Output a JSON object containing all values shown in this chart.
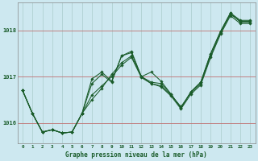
{
  "title": "Graphe pression niveau de la mer (hPa)",
  "background_color": "#cde8f0",
  "grid_color": "#aacccc",
  "line_color": "#1a5c2a",
  "xlim": [
    -0.5,
    23.5
  ],
  "ylim": [
    1015.55,
    1018.6
  ],
  "yticks": [
    1016,
    1017,
    1018
  ],
  "xticks": [
    0,
    1,
    2,
    3,
    4,
    5,
    6,
    7,
    8,
    9,
    10,
    11,
    12,
    13,
    14,
    15,
    16,
    17,
    18,
    19,
    20,
    21,
    22,
    23
  ],
  "series1": [
    1016.7,
    1016.2,
    1015.8,
    1015.85,
    1015.78,
    1015.8,
    1016.2,
    1016.5,
    1016.75,
    1017.05,
    1017.3,
    1017.45,
    1017.0,
    1016.85,
    1016.8,
    1016.6,
    1016.35,
    1016.65,
    1016.85,
    1017.45,
    1017.95,
    1018.35,
    1018.2,
    1018.2
  ],
  "series2": [
    1016.7,
    1016.2,
    1015.8,
    1015.85,
    1015.78,
    1015.8,
    1016.2,
    1016.85,
    1017.05,
    1016.88,
    1017.45,
    1017.52,
    1017.0,
    1017.1,
    1016.9,
    1016.62,
    1016.32,
    1016.67,
    1016.88,
    1017.5,
    1017.98,
    1018.38,
    1018.18,
    1018.18
  ],
  "series3": [
    1016.7,
    1016.2,
    1015.8,
    1015.85,
    1015.78,
    1015.8,
    1016.2,
    1016.95,
    1017.1,
    1016.9,
    1017.45,
    1017.55,
    1017.0,
    1016.88,
    1016.85,
    1016.62,
    1016.32,
    1016.67,
    1016.88,
    1017.5,
    1017.98,
    1018.38,
    1018.22,
    1018.22
  ],
  "series4": [
    1016.7,
    1016.2,
    1015.8,
    1015.85,
    1015.78,
    1015.8,
    1016.2,
    1016.6,
    1016.8,
    1017.0,
    1017.25,
    1017.42,
    1016.98,
    1016.85,
    1016.78,
    1016.58,
    1016.3,
    1016.62,
    1016.82,
    1017.42,
    1017.92,
    1018.32,
    1018.15,
    1018.15
  ]
}
